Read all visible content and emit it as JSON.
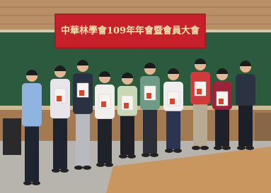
{
  "banner": {
    "text": "中華林學會109年年會暨會員大會"
  }
}
